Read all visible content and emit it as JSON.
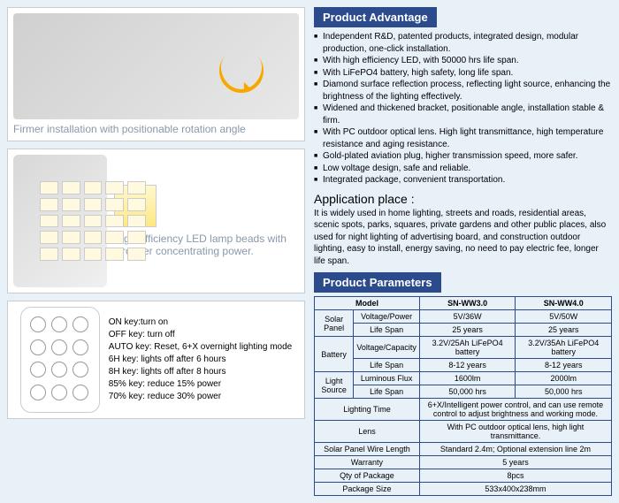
{
  "headers": {
    "advantage": "Product Advantage",
    "parameters": "Product Parameters"
  },
  "capLeft": "Firmer installation with positionable rotation angle",
  "capRight": "High-efficiency LED lamp beads with stronger concentrating power.",
  "bullets": [
    "Independent R&D, patented products, integrated design, modular production, one-click installation.",
    "With high efficiency LED, with 50000 hrs life span.",
    "With LiFePO4 battery, high safety, long life span.",
    "Diamond surface reflection process, reflecting light source, enhancing the brightness of the lighting effectively.",
    "Widened and thickened bracket, positionable angle, installation stable & firm.",
    "With PC outdoor optical lens. High light transmittance, high temperature resistance and aging resistance.",
    "Gold-plated aviation plug, higher transmission speed, more safer.",
    "Low voltage design, safe and reliable.",
    "Integrated package, convenient transportation."
  ],
  "app": {
    "title": "Application place :",
    "text": "It is widely used in home lighting, streets and roads, residential areas, scenic spots, parks, squares, private gardens and other public places, also used for night lighting of advertising board, and construction outdoor lighting, easy to install, energy saving, no need to pay electric fee, longer life span."
  },
  "remote": [
    "ON key:turn on",
    "OFF key: turn off",
    "AUTO key: Reset, 6+X overnight lighting mode",
    "6H key: lights off after 6 hours",
    "8H key: lights off after 8 hours",
    "85% key: reduce 15% power",
    "70% key: reduce 30% power"
  ],
  "t": {
    "model": "Model",
    "m1": "SN-WW3.0",
    "m2": "SN-WW4.0",
    "solar": "Solar Panel",
    "vp": "Voltage/Power",
    "vp1": "5V/36W",
    "vp2": "5V/50W",
    "ls": "Life Span",
    "ls25": "25 years",
    "bat": "Battery",
    "vc": "Voltage/Capacity",
    "vc1": "3.2V/25Ah LiFePO4 battery",
    "vc2": "3.2V/35Ah LiFePO4 battery",
    "ls812": "8-12 years",
    "src": "Light Source",
    "lf": "Luminous Flux",
    "lf1": "1600lm",
    "lf2": "2000lm",
    "ls50": "50,000 hrs",
    "lt": "Lighting Time",
    "ltv": "6+X/Intelligent power control, and can use remote control to adjust brightness and working mode.",
    "lens": "Lens",
    "lensv": "With PC outdoor optical lens, high light transmittance.",
    "wire": "Solar Panel Wire Length",
    "wirev": "Standard 2.4m; Optional extension line 2m",
    "war": "Warranty",
    "warv": "5 years",
    "qty": "Qty of Package",
    "qtyv": "8pcs",
    "pkg": "Package Size",
    "pkgv": "533x400x238mm"
  }
}
